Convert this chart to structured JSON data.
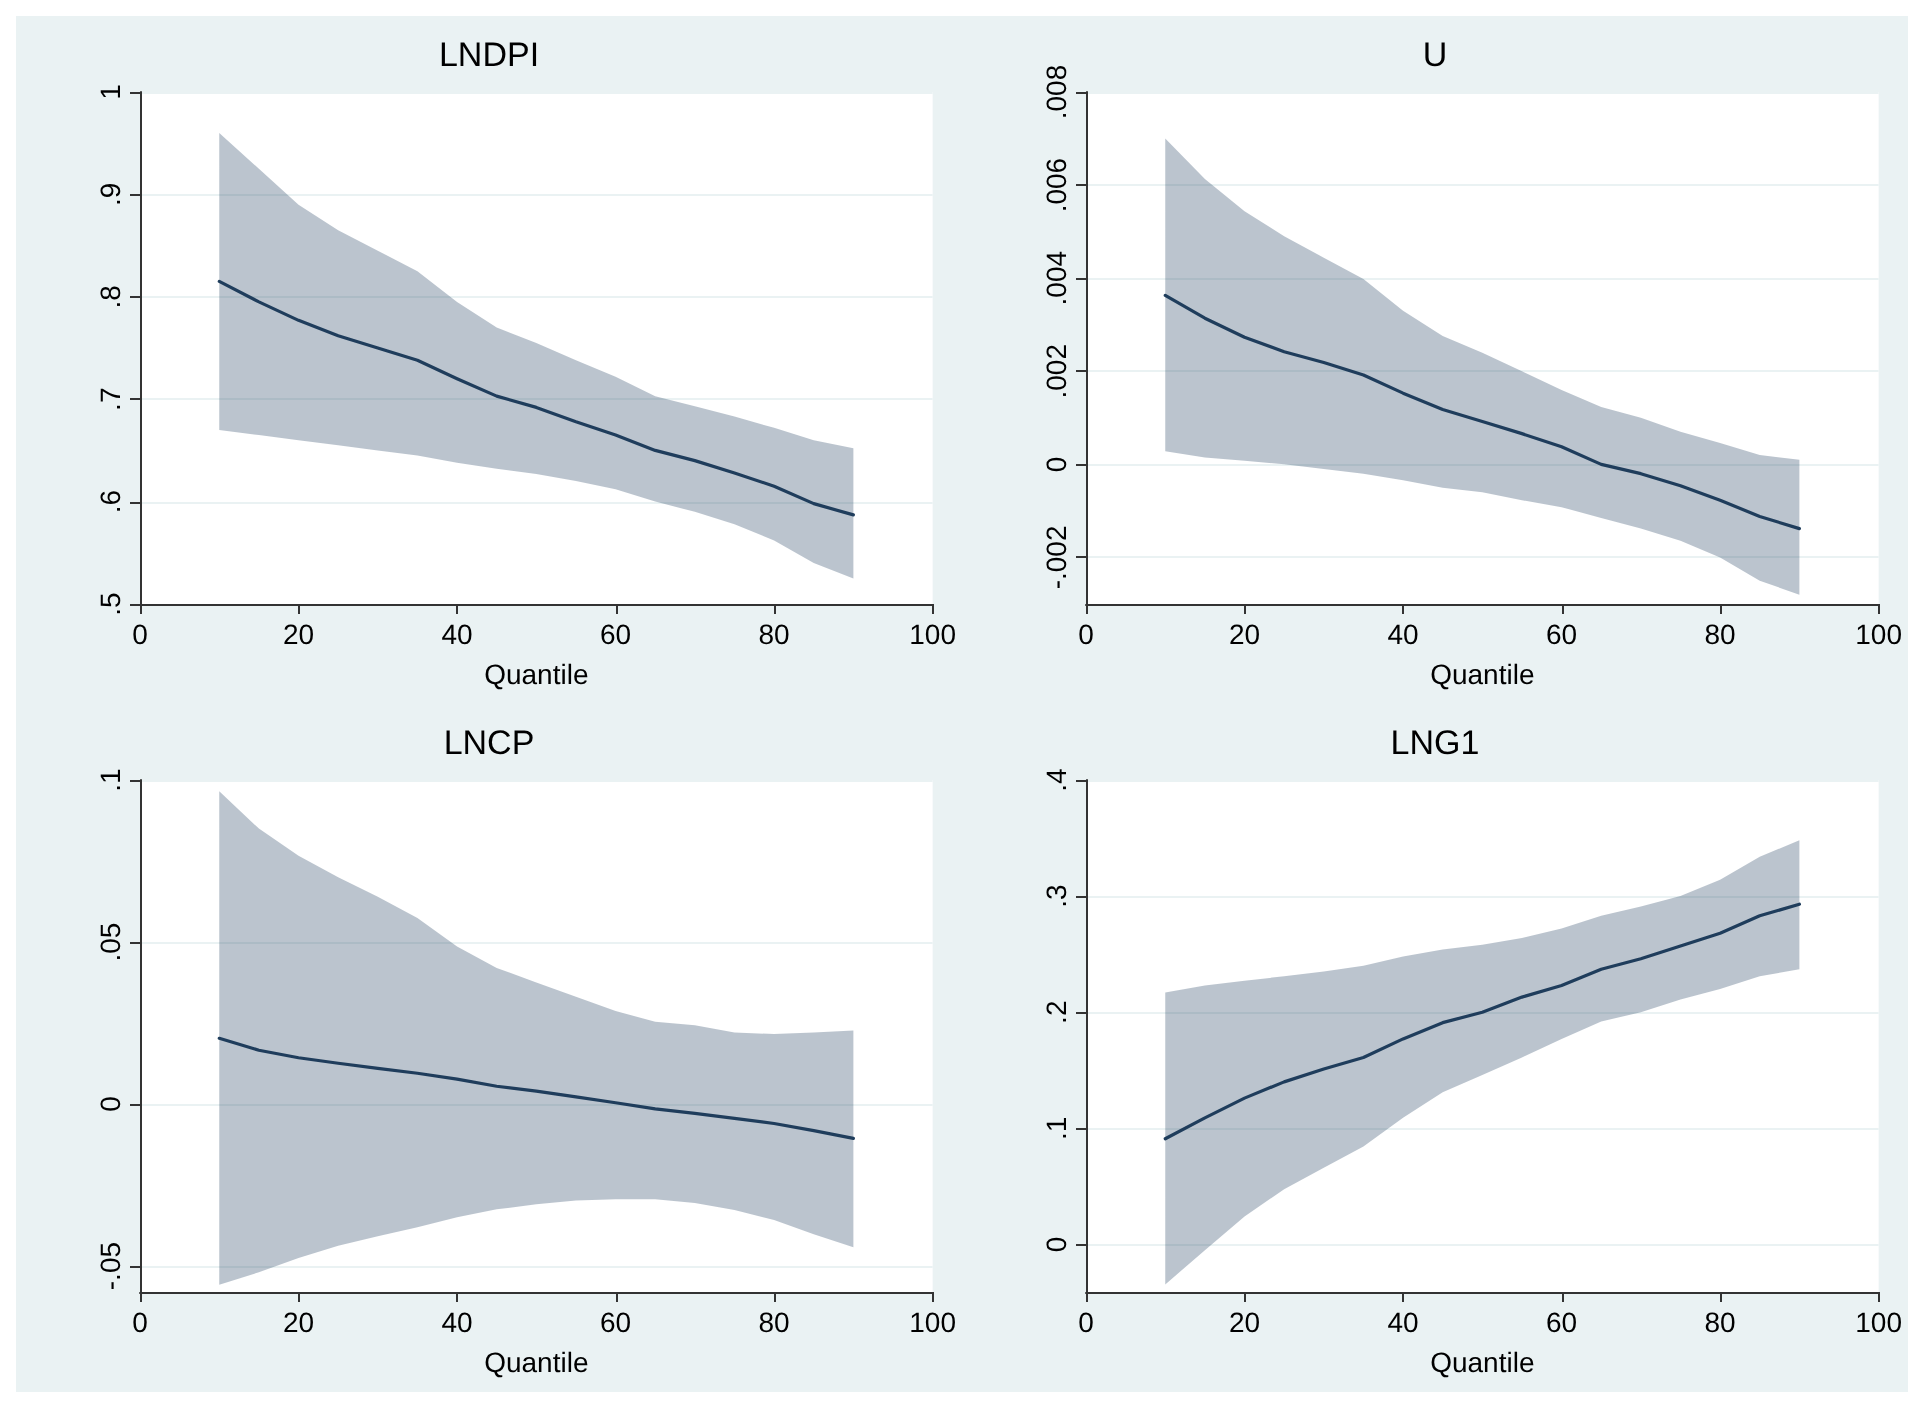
{
  "chart_data": [
    {
      "type": "line",
      "title": "LNDPI",
      "xlabel": "Quantile",
      "x": [
        10,
        15,
        20,
        25,
        30,
        35,
        40,
        45,
        50,
        55,
        60,
        65,
        70,
        75,
        80,
        85,
        90
      ],
      "xlim": [
        0,
        100
      ],
      "xticks": [
        0,
        20,
        40,
        60,
        80,
        100
      ],
      "ylim": [
        0.5,
        1
      ],
      "yticks": [
        {
          "value": 0.5,
          "label": ".5"
        },
        {
          "value": 0.6,
          "label": ".6"
        },
        {
          "value": 0.7,
          "label": ".7"
        },
        {
          "value": 0.8,
          "label": ".8"
        },
        {
          "value": 0.9,
          "label": ".9"
        },
        {
          "value": 1,
          "label": "1"
        }
      ],
      "grid": "y",
      "marker": "none",
      "line_style": "solid",
      "series": [
        {
          "color": "#1f3d5c",
          "values": [
            0.815,
            0.795,
            0.777,
            0.762,
            0.75,
            0.738,
            0.72,
            0.703,
            0.692,
            0.678,
            0.665,
            0.65,
            0.64,
            0.628,
            0.615,
            0.598,
            0.587
          ],
          "lower": [
            0.67,
            0.665,
            0.66,
            0.655,
            0.65,
            0.645,
            0.638,
            0.632,
            0.627,
            0.62,
            0.612,
            0.6,
            0.59,
            0.578,
            0.562,
            0.54,
            0.525
          ],
          "upper": [
            0.96,
            0.925,
            0.89,
            0.865,
            0.845,
            0.825,
            0.795,
            0.77,
            0.755,
            0.738,
            0.722,
            0.703,
            0.693,
            0.683,
            0.672,
            0.66,
            0.652
          ]
        }
      ]
    },
    {
      "type": "line",
      "title": "U",
      "xlabel": "Quantile",
      "x": [
        10,
        15,
        20,
        25,
        30,
        35,
        40,
        45,
        50,
        55,
        60,
        65,
        70,
        75,
        80,
        85,
        90
      ],
      "xlim": [
        0,
        100
      ],
      "xticks": [
        0,
        20,
        40,
        60,
        80,
        100
      ],
      "ylim": [
        -0.003,
        0.008
      ],
      "yticks": [
        {
          "value": -0.002,
          "label": "-.002"
        },
        {
          "value": 0,
          "label": "0"
        },
        {
          "value": 0.002,
          "label": ".002"
        },
        {
          "value": 0.004,
          "label": ".004"
        },
        {
          "value": 0.006,
          "label": ".006"
        },
        {
          "value": 0.008,
          "label": ".008"
        }
      ],
      "grid": "y",
      "marker": "none",
      "line_style": "solid",
      "series": [
        {
          "color": "#1f3d5c",
          "values": [
            0.00363,
            0.00314,
            0.00273,
            0.00242,
            0.00219,
            0.00192,
            0.00153,
            0.00118,
            0.00092,
            0.00066,
            0.00038,
            0,
            -0.0002,
            -0.00046,
            -0.00077,
            -0.00112,
            -0.00138
          ],
          "lower": [
            0.00028,
            0.00015,
            8e-05,
            0,
            -0.0001,
            -0.0002,
            -0.00034,
            -0.0005,
            -0.0006,
            -0.00077,
            -0.00092,
            -0.00115,
            -0.00138,
            -0.00164,
            -0.002,
            -0.0025,
            -0.0028
          ],
          "upper": [
            0.007,
            0.00613,
            0.00544,
            0.0049,
            0.00444,
            0.00398,
            0.0033,
            0.00276,
            0.0024,
            0.002,
            0.0016,
            0.00123,
            0.001,
            0.0007,
            0.00046,
            0.0002,
            0.0001
          ]
        }
      ]
    },
    {
      "type": "line",
      "title": "LNCP",
      "xlabel": "Quantile",
      "x": [
        10,
        15,
        20,
        25,
        30,
        35,
        40,
        45,
        50,
        55,
        60,
        65,
        70,
        75,
        80,
        85,
        90
      ],
      "xlim": [
        0,
        100
      ],
      "xticks": [
        0,
        20,
        40,
        60,
        80,
        100
      ],
      "ylim": [
        -0.058,
        0.1
      ],
      "yticks": [
        {
          "value": -0.05,
          "label": "-.05"
        },
        {
          "value": 0,
          "label": "0"
        },
        {
          "value": 0.05,
          "label": ".05"
        },
        {
          "value": 0.1,
          "label": ".1"
        }
      ],
      "grid": "y",
      "marker": "none",
      "line_style": "solid",
      "series": [
        {
          "color": "#1f3d5c",
          "values": [
            0.0203,
            0.0166,
            0.0143,
            0.0126,
            0.011,
            0.0095,
            0.0077,
            0.0055,
            0.004,
            0.0022,
            0.0004,
            -0.0015,
            -0.0029,
            -0.0044,
            -0.006,
            -0.0082,
            -0.0106
          ],
          "lower": [
            -0.0558,
            -0.0519,
            -0.0475,
            -0.0437,
            -0.0408,
            -0.038,
            -0.0349,
            -0.0325,
            -0.0309,
            -0.0298,
            -0.0294,
            -0.0294,
            -0.0305,
            -0.0327,
            -0.0358,
            -0.0402,
            -0.0442
          ],
          "upper": [
            0.0965,
            0.085,
            0.0766,
            0.07,
            0.064,
            0.0574,
            0.0486,
            0.042,
            0.0375,
            0.0331,
            0.0287,
            0.0254,
            0.0243,
            0.0221,
            0.0216,
            0.0221,
            0.0227
          ]
        }
      ]
    },
    {
      "type": "line",
      "title": "LNG1",
      "xlabel": "Quantile",
      "x": [
        10,
        15,
        20,
        25,
        30,
        35,
        40,
        45,
        50,
        55,
        60,
        65,
        70,
        75,
        80,
        85,
        90
      ],
      "xlim": [
        0,
        100
      ],
      "xticks": [
        0,
        20,
        40,
        60,
        80,
        100
      ],
      "ylim": [
        -0.041,
        0.4
      ],
      "yticks": [
        {
          "value": 0,
          "label": "0"
        },
        {
          "value": 0.1,
          "label": ".1"
        },
        {
          "value": 0.2,
          "label": ".2"
        },
        {
          "value": 0.3,
          "label": ".3"
        },
        {
          "value": 0.4,
          "label": ".4"
        }
      ],
      "grid": "y",
      "marker": "none",
      "line_style": "solid",
      "series": [
        {
          "color": "#1f3d5c",
          "values": [
            0.091,
            0.109,
            0.126,
            0.14,
            0.151,
            0.161,
            0.177,
            0.191,
            0.2,
            0.213,
            0.223,
            0.237,
            0.246,
            0.257,
            0.268,
            0.283,
            0.293
          ],
          "lower": [
            -0.0345,
            -0.005,
            0.024,
            0.0475,
            0.066,
            0.0844,
            0.109,
            0.131,
            0.146,
            0.161,
            0.177,
            0.192,
            0.2,
            0.211,
            0.22,
            0.231,
            0.237
          ],
          "upper": [
            0.217,
            0.223,
            0.227,
            0.231,
            0.235,
            0.24,
            0.248,
            0.254,
            0.258,
            0.264,
            0.272,
            0.283,
            0.291,
            0.3,
            0.314,
            0.334,
            0.348
          ]
        }
      ]
    }
  ]
}
